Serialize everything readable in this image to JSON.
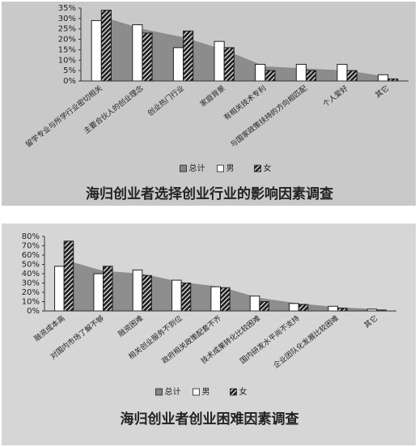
{
  "chart_data": [
    {
      "type": "bar",
      "title": "海归创业者选择创业行业的影响因素调查",
      "categories": [
        "留学专业与所学行业密切相关",
        "主要合伙人的创业理念",
        "创业热门行业",
        "家庭背景",
        "有相关技术专利",
        "与国家政策扶持的方向相匹配",
        "个人爱好",
        "其它"
      ],
      "series": [
        {
          "name": "总计",
          "type": "area",
          "color": "#858585",
          "values": [
            31,
            25,
            21,
            15,
            7,
            6,
            5,
            2
          ]
        },
        {
          "name": "男",
          "type": "bar",
          "color": "#ffffff",
          "values": [
            29,
            27,
            16,
            19,
            8,
            8,
            8,
            3
          ]
        },
        {
          "name": "女",
          "type": "bar",
          "color": "#2a2a2a",
          "values": [
            34,
            23,
            24,
            16,
            5,
            5,
            5,
            1
          ]
        }
      ],
      "ylim": [
        0,
        35
      ],
      "yticks": [
        {
          "value": 0,
          "label": "0%"
        },
        {
          "value": 5,
          "label": "5%"
        },
        {
          "value": 10,
          "label": "10%"
        },
        {
          "value": 15,
          "label": "15%"
        },
        {
          "value": 20,
          "label": "20%"
        },
        {
          "value": 25,
          "label": "25%"
        },
        {
          "value": 30,
          "label": "30%"
        },
        {
          "value": 35,
          "label": "35%"
        }
      ]
    },
    {
      "type": "bar",
      "title": "海归创业者创业困难因素调查",
      "categories": [
        "融资成本高",
        "对国内市场了解不够",
        "融资困难",
        "相关创业服务不到位",
        "政府相关政策配套不齐",
        "技术成果转化比较困难",
        "国内研发水平尚不支持",
        "企业团队化发展比较困难",
        "其它"
      ],
      "series": [
        {
          "name": "总计",
          "type": "area",
          "color": "#858585",
          "values": [
            55,
            43,
            40,
            31,
            26,
            14,
            8,
            4,
            2
          ]
        },
        {
          "name": "男",
          "type": "bar",
          "color": "#ffffff",
          "values": [
            48,
            40,
            44,
            33,
            26,
            16,
            8,
            5,
            2
          ]
        },
        {
          "name": "女",
          "type": "bar",
          "color": "#2a2a2a",
          "values": [
            75,
            48,
            38,
            30,
            25,
            10,
            7,
            3,
            1
          ]
        }
      ],
      "ylim": [
        0,
        80
      ],
      "yticks": [
        {
          "value": 0,
          "label": "0%"
        },
        {
          "value": 10,
          "label": "10%"
        },
        {
          "value": 20,
          "label": "20%"
        },
        {
          "value": 30,
          "label": "30%"
        },
        {
          "value": 40,
          "label": "40%"
        },
        {
          "value": 50,
          "label": "50%"
        },
        {
          "value": 60,
          "label": "60%"
        },
        {
          "value": 70,
          "label": "70%"
        },
        {
          "value": 80,
          "label": "80%"
        }
      ]
    }
  ]
}
